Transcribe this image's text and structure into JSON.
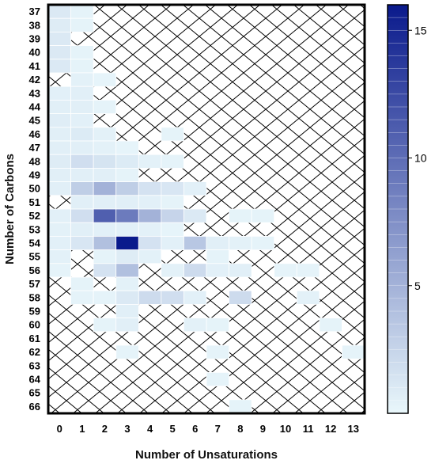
{
  "chart_data": {
    "type": "heatmap",
    "xlabel": "Number of Unsaturations",
    "ylabel": "Number of Carbons",
    "x_categories": [
      "0",
      "1",
      "2",
      "3",
      "4",
      "5",
      "6",
      "7",
      "8",
      "9",
      "10",
      "11",
      "12",
      "13"
    ],
    "y_categories": [
      "37",
      "38",
      "39",
      "40",
      "41",
      "42",
      "43",
      "44",
      "45",
      "46",
      "47",
      "48",
      "49",
      "50",
      "51",
      "52",
      "53",
      "54",
      "55",
      "56",
      "57",
      "58",
      "59",
      "60",
      "61",
      "62",
      "63",
      "64",
      "65",
      "66"
    ],
    "colorbar": {
      "min": 0,
      "max": 16,
      "ticks": [
        5,
        10,
        15
      ],
      "low_color": "#e9f7fb",
      "high_color": "#0a1a8c"
    },
    "missing_pattern": "cross-hatch",
    "cells": [
      {
        "y": "37",
        "x": "0",
        "v": 1
      },
      {
        "y": "37",
        "x": "1",
        "v": 0.3
      },
      {
        "y": "38",
        "x": "0",
        "v": 0.8
      },
      {
        "y": "38",
        "x": "1",
        "v": 0.3
      },
      {
        "y": "39",
        "x": "0",
        "v": 1
      },
      {
        "y": "40",
        "x": "0",
        "v": 1
      },
      {
        "y": "40",
        "x": "1",
        "v": 0.3
      },
      {
        "y": "41",
        "x": "0",
        "v": 1
      },
      {
        "y": "41",
        "x": "1",
        "v": 0.3
      },
      {
        "y": "42",
        "x": "1",
        "v": 0.4
      },
      {
        "y": "42",
        "x": "2",
        "v": 0.2
      },
      {
        "y": "43",
        "x": "0",
        "v": 0.5
      },
      {
        "y": "43",
        "x": "1",
        "v": 0.6
      },
      {
        "y": "44",
        "x": "0",
        "v": 0.6
      },
      {
        "y": "44",
        "x": "1",
        "v": 0.6
      },
      {
        "y": "44",
        "x": "2",
        "v": 0.3
      },
      {
        "y": "45",
        "x": "0",
        "v": 0.7
      },
      {
        "y": "45",
        "x": "1",
        "v": 0.5
      },
      {
        "y": "46",
        "x": "0",
        "v": 0.6
      },
      {
        "y": "46",
        "x": "1",
        "v": 0.9
      },
      {
        "y": "46",
        "x": "2",
        "v": 0.4
      },
      {
        "y": "46",
        "x": "5",
        "v": 0.3
      },
      {
        "y": "47",
        "x": "0",
        "v": 0.6
      },
      {
        "y": "47",
        "x": "1",
        "v": 0.6
      },
      {
        "y": "47",
        "x": "2",
        "v": 0.4
      },
      {
        "y": "47",
        "x": "3",
        "v": 0.2
      },
      {
        "y": "48",
        "x": "0",
        "v": 0.8
      },
      {
        "y": "48",
        "x": "1",
        "v": 1.8
      },
      {
        "y": "48",
        "x": "2",
        "v": 1.4
      },
      {
        "y": "48",
        "x": "3",
        "v": 0.9
      },
      {
        "y": "48",
        "x": "4",
        "v": 0.4
      },
      {
        "y": "48",
        "x": "5",
        "v": 0.3
      },
      {
        "y": "49",
        "x": "0",
        "v": 0.6
      },
      {
        "y": "49",
        "x": "1",
        "v": 0.6
      },
      {
        "y": "49",
        "x": "2",
        "v": 0.6
      },
      {
        "y": "49",
        "x": "3",
        "v": 0.3
      },
      {
        "y": "50",
        "x": "0",
        "v": 0.6
      },
      {
        "y": "50",
        "x": "1",
        "v": 3
      },
      {
        "y": "50",
        "x": "2",
        "v": 5
      },
      {
        "y": "50",
        "x": "3",
        "v": 3
      },
      {
        "y": "50",
        "x": "4",
        "v": 1.5
      },
      {
        "y": "50",
        "x": "5",
        "v": 1.2
      },
      {
        "y": "50",
        "x": "6",
        "v": 0.5
      },
      {
        "y": "51",
        "x": "1",
        "v": 0.6
      },
      {
        "y": "51",
        "x": "2",
        "v": 0.6
      },
      {
        "y": "51",
        "x": "3",
        "v": 0.6
      },
      {
        "y": "51",
        "x": "4",
        "v": 0.5
      },
      {
        "y": "51",
        "x": "5",
        "v": 0.3
      },
      {
        "y": "52",
        "x": "0",
        "v": 0.5
      },
      {
        "y": "52",
        "x": "1",
        "v": 1.8
      },
      {
        "y": "52",
        "x": "2",
        "v": 11
      },
      {
        "y": "52",
        "x": "3",
        "v": 9
      },
      {
        "y": "52",
        "x": "4",
        "v": 5
      },
      {
        "y": "52",
        "x": "5",
        "v": 2.5
      },
      {
        "y": "52",
        "x": "6",
        "v": 1
      },
      {
        "y": "52",
        "x": "8",
        "v": 0.3
      },
      {
        "y": "52",
        "x": "9",
        "v": 0.3
      },
      {
        "y": "53",
        "x": "0",
        "v": 0.4
      },
      {
        "y": "53",
        "x": "1",
        "v": 0.6
      },
      {
        "y": "53",
        "x": "2",
        "v": 0.5
      },
      {
        "y": "53",
        "x": "3",
        "v": 0.5
      },
      {
        "y": "53",
        "x": "4",
        "v": 0.4
      },
      {
        "y": "53",
        "x": "5",
        "v": 0.2
      },
      {
        "y": "54",
        "x": "0",
        "v": 0.5
      },
      {
        "y": "54",
        "x": "1",
        "v": 1.2
      },
      {
        "y": "54",
        "x": "2",
        "v": 4
      },
      {
        "y": "54",
        "x": "3",
        "v": 16
      },
      {
        "y": "54",
        "x": "4",
        "v": 1.5
      },
      {
        "y": "54",
        "x": "5",
        "v": 0.5
      },
      {
        "y": "54",
        "x": "6",
        "v": 3.5
      },
      {
        "y": "54",
        "x": "7",
        "v": 0.6
      },
      {
        "y": "54",
        "x": "8",
        "v": 0.4
      },
      {
        "y": "54",
        "x": "9",
        "v": 0.3
      },
      {
        "y": "55",
        "x": "0",
        "v": 0.4
      },
      {
        "y": "55",
        "x": "2",
        "v": 0.3
      },
      {
        "y": "55",
        "x": "3",
        "v": 0.8
      },
      {
        "y": "55",
        "x": "4",
        "v": 0.4
      },
      {
        "y": "55",
        "x": "7",
        "v": 0.3
      },
      {
        "y": "56",
        "x": "0",
        "v": 0.3
      },
      {
        "y": "56",
        "x": "2",
        "v": 1.5
      },
      {
        "y": "56",
        "x": "3",
        "v": 4
      },
      {
        "y": "56",
        "x": "5",
        "v": 0.4
      },
      {
        "y": "56",
        "x": "6",
        "v": 2
      },
      {
        "y": "56",
        "x": "7",
        "v": 0.5
      },
      {
        "y": "56",
        "x": "8",
        "v": 0.6
      },
      {
        "y": "56",
        "x": "10",
        "v": 0.3
      },
      {
        "y": "56",
        "x": "11",
        "v": 0.3
      },
      {
        "y": "57",
        "x": "1",
        "v": 0.3
      },
      {
        "y": "57",
        "x": "3",
        "v": 0.4
      },
      {
        "y": "58",
        "x": "1",
        "v": 0.3
      },
      {
        "y": "58",
        "x": "2",
        "v": 0.3
      },
      {
        "y": "58",
        "x": "3",
        "v": 1
      },
      {
        "y": "58",
        "x": "4",
        "v": 2
      },
      {
        "y": "58",
        "x": "5",
        "v": 1.8
      },
      {
        "y": "58",
        "x": "6",
        "v": 0.5
      },
      {
        "y": "58",
        "x": "8",
        "v": 2
      },
      {
        "y": "58",
        "x": "11",
        "v": 0.4
      },
      {
        "y": "59",
        "x": "3",
        "v": 0.6
      },
      {
        "y": "60",
        "x": "2",
        "v": 0.3
      },
      {
        "y": "60",
        "x": "3",
        "v": 0.6
      },
      {
        "y": "60",
        "x": "6",
        "v": 0.4
      },
      {
        "y": "60",
        "x": "7",
        "v": 0.3
      },
      {
        "y": "60",
        "x": "12",
        "v": 0.3
      },
      {
        "y": "62",
        "x": "3",
        "v": 0.3
      },
      {
        "y": "62",
        "x": "7",
        "v": 0.3
      },
      {
        "y": "62",
        "x": "13",
        "v": 0.3
      },
      {
        "y": "64",
        "x": "7",
        "v": 0.3
      },
      {
        "y": "66",
        "x": "8",
        "v": 0.3
      }
    ]
  }
}
